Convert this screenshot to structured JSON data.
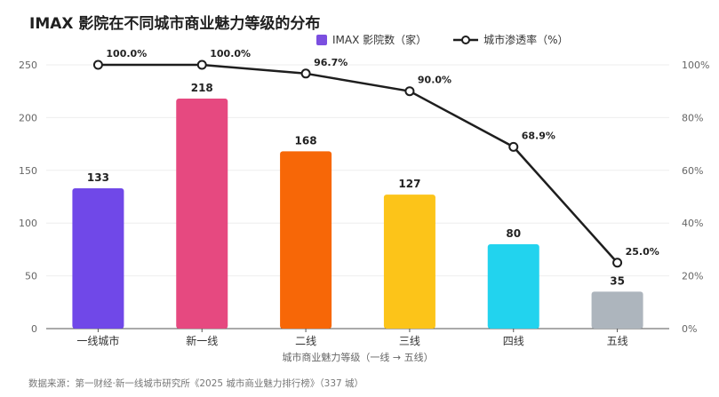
{
  "title": "IMAX 影院在不同城市商业魅力等级的分布",
  "legend": {
    "bar_label": "IMAX 影院数（家）",
    "line_label": "城市渗透率（%）"
  },
  "source": "数据来源：第一财经·新一线城市研究所《2025 城市商业魅力排行榜》（337 城）",
  "colors": {
    "legend_bar": "#7b4fe0",
    "line": "#1e1e1e",
    "grid": "#eeeeee"
  },
  "chart_data": {
    "type": "bar",
    "title": "IMAX 影院在不同城市商业魅力等级的分布",
    "xlabel": "城市商业魅力等级（一线 → 五线）",
    "ylabel": "",
    "categories": [
      "一线城市",
      "新一线",
      "二线",
      "三线",
      "四线",
      "五线"
    ],
    "bar_colors": [
      "#7048e8",
      "#e64980",
      "#f76707",
      "#fcc419",
      "#22d3ee",
      "#adb5bd"
    ],
    "series": [
      {
        "name": "IMAX 影院数（家）",
        "type": "bar",
        "axis": "left",
        "values": [
          133,
          218,
          168,
          127,
          80,
          35
        ],
        "labels": [
          "133",
          "218",
          "168",
          "127",
          "80",
          "35"
        ]
      },
      {
        "name": "城市渗透率（%）",
        "type": "line",
        "axis": "right",
        "values": [
          100.0,
          100.0,
          96.7,
          90.0,
          68.9,
          25.0
        ],
        "labels": [
          "100.0%",
          "100.0%",
          "96.7%",
          "90.0%",
          "68.9%",
          "25.0%"
        ]
      }
    ],
    "ylim": [
      0,
      250
    ],
    "y_ticks": [
      "0",
      "50",
      "100",
      "150",
      "200",
      "250"
    ],
    "y2lim": [
      0,
      100
    ],
    "y2_ticks": [
      "0%",
      "20%",
      "40%",
      "60%",
      "80%",
      "100%"
    ],
    "grid": true,
    "legend_position": "top"
  }
}
